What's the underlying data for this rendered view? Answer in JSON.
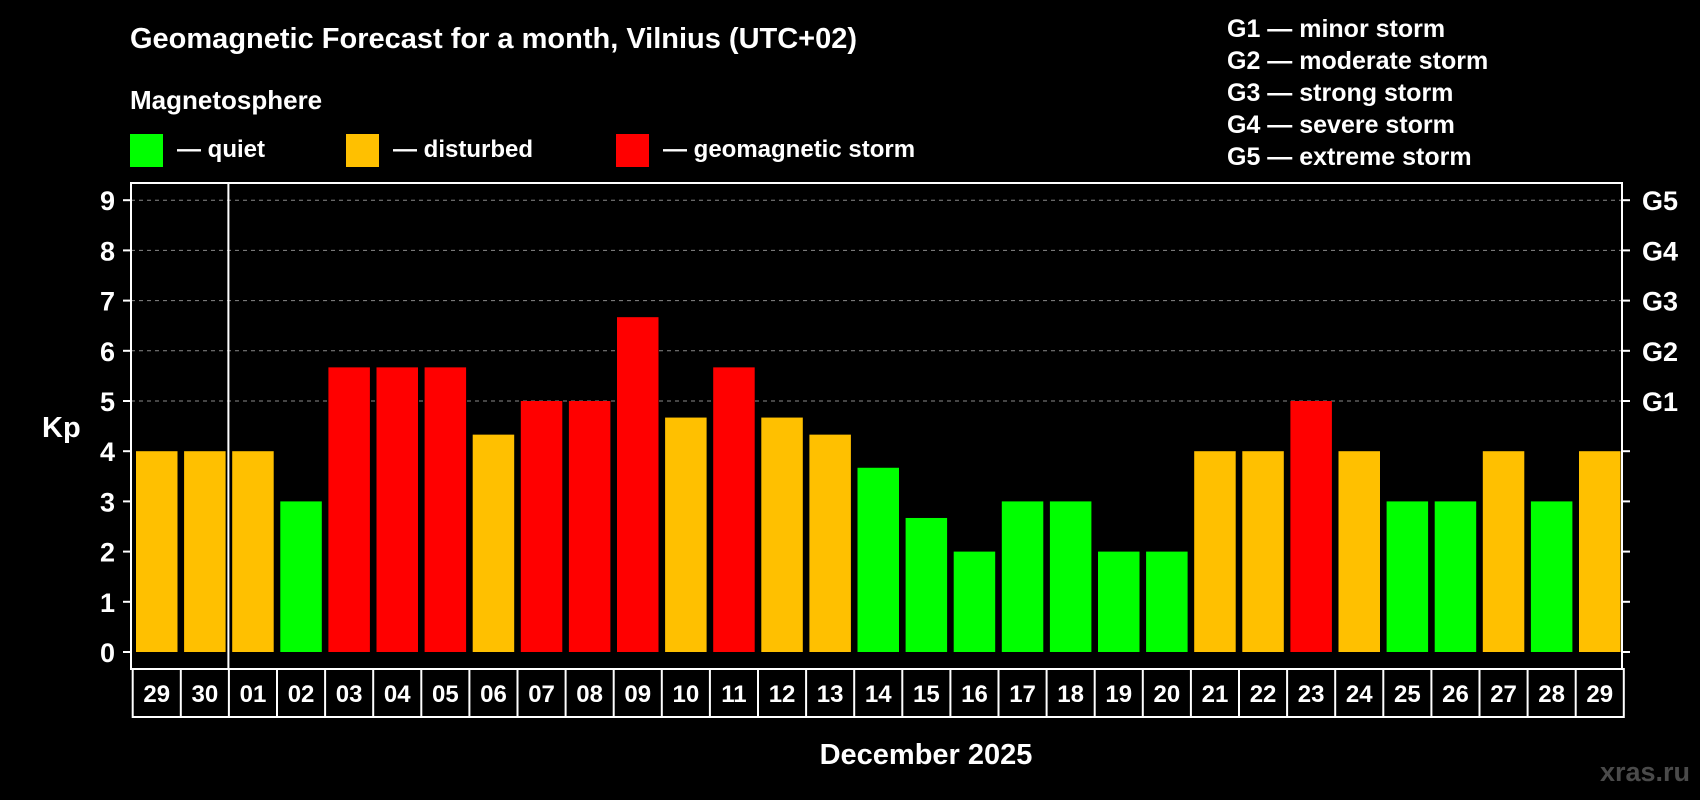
{
  "chart_data": {
    "type": "bar",
    "title": "Geomagnetic Forecast for a month, Vilnius (UTC+02)",
    "subtitle": "Magnetosphere",
    "ylabel": "Kp",
    "xlabel": "December 2025",
    "ylim": [
      0,
      9
    ],
    "yticks": [
      "0",
      "1",
      "2",
      "3",
      "4",
      "5",
      "6",
      "7",
      "8",
      "9"
    ],
    "right_ticks": [
      {
        "value": 5,
        "label": "G1"
      },
      {
        "value": 6,
        "label": "G2"
      },
      {
        "value": 7,
        "label": "G3"
      },
      {
        "value": 8,
        "label": "G4"
      },
      {
        "value": 9,
        "label": "G5"
      }
    ],
    "grid": "dashed horizontal at Kp 5-9",
    "legend_placement": "top",
    "legend": [
      {
        "label": "— quiet",
        "color": "#00ff00"
      },
      {
        "label": "— disturbed",
        "color": "#ffc000"
      },
      {
        "label": "— geomagnetic storm",
        "color": "#ff0000"
      }
    ],
    "storm_legend": [
      "G1 — minor storm",
      "G2 — moderate storm",
      "G3 — strong storm",
      "G4 — severe storm",
      "G5 — extreme storm"
    ],
    "month_separator_after": "30",
    "categories": [
      "29",
      "30",
      "01",
      "02",
      "03",
      "04",
      "05",
      "06",
      "07",
      "08",
      "09",
      "10",
      "11",
      "12",
      "13",
      "14",
      "15",
      "16",
      "17",
      "18",
      "19",
      "20",
      "21",
      "22",
      "23",
      "24",
      "25",
      "26",
      "27",
      "28",
      "29"
    ],
    "values": [
      4,
      4,
      4,
      3,
      5.67,
      5.67,
      5.67,
      4.33,
      5,
      5,
      6.67,
      4.67,
      5.67,
      4.67,
      4.33,
      3.67,
      2.67,
      2,
      3,
      3,
      2,
      2,
      4,
      4,
      5,
      4,
      3,
      3,
      4,
      3,
      4
    ],
    "levels": [
      "disturbed",
      "disturbed",
      "disturbed",
      "quiet",
      "storm",
      "storm",
      "storm",
      "disturbed",
      "storm",
      "storm",
      "storm",
      "disturbed",
      "storm",
      "disturbed",
      "disturbed",
      "quiet",
      "quiet",
      "quiet",
      "quiet",
      "quiet",
      "quiet",
      "quiet",
      "disturbed",
      "disturbed",
      "storm",
      "disturbed",
      "quiet",
      "quiet",
      "disturbed",
      "quiet",
      "disturbed"
    ],
    "level_colors": {
      "quiet": "#00ff00",
      "disturbed": "#ffc000",
      "storm": "#ff0000"
    }
  },
  "watermark": "xras.ru"
}
